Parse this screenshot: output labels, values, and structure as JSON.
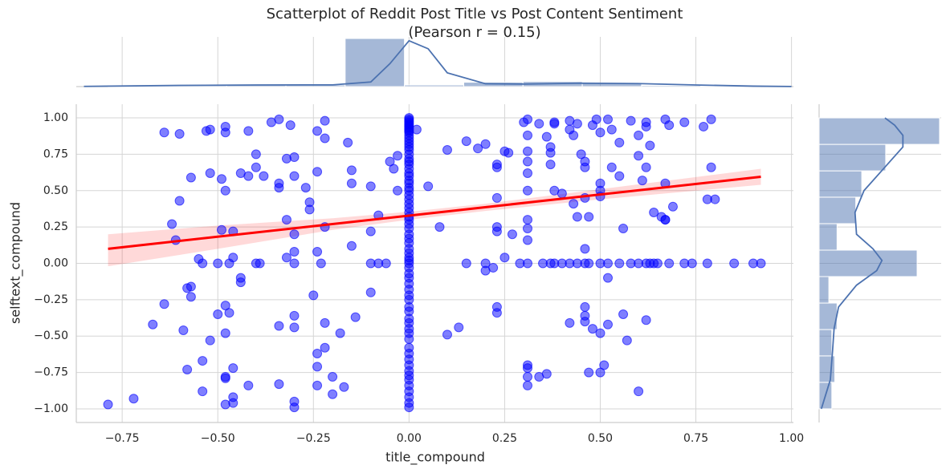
{
  "chart_data": {
    "type": "scatter",
    "title": "Scatterplot of Reddit Post Title vs Post Content Sentiment",
    "subtitle": "(Pearson r = 0.15)",
    "x_label": "title_compound",
    "y_label": "selftext_compound",
    "color": "blue",
    "grid": true,
    "xlim": [
      -0.87,
      1.005
    ],
    "ylim": [
      -1.094,
      1.094
    ],
    "xticks": [
      {
        "value": -0.75,
        "label": "−0.75"
      },
      {
        "value": -0.5,
        "label": "−0.50"
      },
      {
        "value": -0.25,
        "label": "−0.25"
      },
      {
        "value": 0,
        "label": "0.00"
      },
      {
        "value": 0.25,
        "label": "0.25"
      },
      {
        "value": 0.5,
        "label": "0.50"
      },
      {
        "value": 0.75,
        "label": "0.75"
      },
      {
        "value": 1.0,
        "label": "1.00"
      }
    ],
    "yticks": [
      {
        "value": -1.0,
        "label": "−1.00"
      },
      {
        "value": -0.75,
        "label": "−0.75"
      },
      {
        "value": -0.5,
        "label": "−0.50"
      },
      {
        "value": -0.25,
        "label": "−0.25"
      },
      {
        "value": 0,
        "label": "0.00"
      },
      {
        "value": 0.25,
        "label": "0.25"
      },
      {
        "value": 0.5,
        "label": "0.50"
      },
      {
        "value": 0.75,
        "label": "0.75"
      },
      {
        "value": 1.0,
        "label": "1.00"
      }
    ],
    "x": [
      -0.787,
      -0.72,
      -0.67,
      -0.64,
      -0.62,
      -0.61,
      -0.6,
      -0.64,
      -0.6,
      -0.59,
      -0.58,
      -0.57,
      -0.57,
      -0.58,
      -0.57,
      -0.55,
      -0.54,
      -0.54,
      -0.53,
      -0.52,
      -0.52,
      -0.52,
      -0.5,
      -0.49,
      -0.49,
      -0.48,
      -0.48,
      -0.48,
      -0.48,
      -0.48,
      -0.47,
      -0.48,
      -0.48,
      -0.48,
      -0.46,
      -0.46,
      -0.46,
      -0.46,
      -0.46,
      -0.44,
      -0.44,
      -0.44,
      -0.42,
      -0.42,
      -0.42,
      -0.4,
      -0.4,
      -0.38,
      -0.36,
      -0.34,
      -0.34,
      -0.34,
      -0.34,
      -0.34,
      -0.31,
      -0.32,
      -0.32,
      -0.32,
      -0.3,
      -0.3,
      -0.3,
      -0.3,
      -0.3,
      -0.3,
      -0.3,
      -0.3,
      -0.27,
      -0.26,
      -0.26,
      -0.25,
      -0.24,
      -0.24,
      -0.24,
      -0.24,
      -0.24,
      -0.24,
      -0.22,
      -0.22,
      -0.22,
      -0.22,
      -0.22,
      -0.2,
      -0.2,
      -0.18,
      -0.17,
      -0.16,
      -0.15,
      -0.15,
      -0.15,
      -0.14,
      -0.1,
      -0.1,
      -0.1,
      -0.08,
      -0.05,
      -0.03,
      -0.03,
      -0.04,
      0.1,
      0.13,
      0.08,
      0,
      0,
      0,
      0,
      0,
      0,
      0,
      0,
      0,
      0,
      0,
      0,
      0,
      0,
      0,
      0,
      0,
      0,
      0,
      0,
      0,
      0,
      0,
      0,
      0,
      0,
      0,
      0,
      0,
      0,
      0,
      0,
      0,
      0,
      0,
      0,
      0,
      0,
      0,
      0,
      0,
      0,
      0,
      0,
      0,
      0,
      0,
      0,
      0,
      0,
      0,
      0,
      0,
      0,
      0,
      0,
      0,
      0,
      0,
      0,
      0,
      0,
      0,
      0,
      0,
      0,
      0,
      0,
      0,
      0,
      0,
      0.15,
      0.2,
      0.29,
      0.31,
      0.35,
      0.37,
      0.38,
      0.4,
      0.42,
      0.44,
      0.46,
      0.47,
      0.5,
      0.52,
      0.55,
      0.58,
      0.6,
      0.62,
      0.63,
      0.64,
      0.65,
      0.68,
      0.72,
      0.74,
      0.78,
      0.85,
      0.9,
      0.92,
      -0.54,
      -0.5,
      -0.47,
      -0.4,
      -0.39,
      -0.3,
      -0.23,
      -0.1,
      -0.08,
      -0.06,
      0.02,
      0.05,
      0.1,
      0.15,
      0.18,
      0.2,
      0.2,
      0.22,
      0.25,
      0.26,
      0.23,
      0.23,
      0.23,
      0.23,
      0.23,
      0.23,
      0.23,
      0.3,
      0.31,
      0.31,
      0.31,
      0.31,
      0.31,
      0.31,
      0.31,
      0.31,
      0.31,
      0.31,
      0.31,
      0.31,
      0.31,
      0.34,
      0.36,
      0.36,
      0.37,
      0.37,
      0.37,
      0.38,
      0.38,
      0.38,
      0.4,
      0.42,
      0.42,
      0.43,
      0.43,
      0.44,
      0.44,
      0.45,
      0.46,
      0.46,
      0.46,
      0.46,
      0.46,
      0.46,
      0.46,
      0.47,
      0.48,
      0.49,
      0.5,
      0.5,
      0.5,
      0.5,
      0.5,
      0.5,
      0.51,
      0.52,
      0.52,
      0.52,
      0.53,
      0.53,
      0.55,
      0.55,
      0.56,
      0.56,
      0.57,
      0.58,
      0.6,
      0.6,
      0.6,
      0.61,
      0.62,
      0.62,
      0.62,
      0.62,
      0.63,
      0.64,
      0.66,
      0.67,
      0.67,
      0.67,
      0.67,
      0.68,
      0.69,
      0.72,
      0.77,
      0.78,
      0.79,
      0.79,
      0.8,
      0.34,
      0.42,
      0.48,
      0.47,
      0.25,
      0.27
    ],
    "y": [
      -0.97,
      -0.93,
      -0.42,
      -0.28,
      0.27,
      0.16,
      0.43,
      0.9,
      0.89,
      -0.46,
      -0.17,
      -0.16,
      -0.23,
      -0.73,
      0.59,
      0.03,
      -0.67,
      -0.88,
      0.91,
      0.92,
      0.62,
      -0.53,
      -0.35,
      0.23,
      0.58,
      0.94,
      0.9,
      0.5,
      -0.29,
      -0.48,
      -0.34,
      -0.78,
      -0.79,
      -0.97,
      0.22,
      0.04,
      -0.72,
      -0.92,
      -0.96,
      -0.1,
      -0.13,
      0.62,
      0.91,
      0.6,
      -0.84,
      0.75,
      0.66,
      0.6,
      0.97,
      0.99,
      0.55,
      0.52,
      -0.43,
      -0.83,
      0.95,
      0.3,
      0.72,
      0.04,
      0.73,
      0.6,
      0.2,
      0.08,
      -0.36,
      -0.44,
      -0.95,
      -0.99,
      0.52,
      0.42,
      0.37,
      -0.22,
      0.91,
      0.63,
      0.08,
      -0.62,
      -0.71,
      -0.84,
      0.98,
      0.86,
      0.25,
      -0.58,
      -0.41,
      -0.78,
      -0.9,
      -0.48,
      -0.85,
      0.83,
      0.64,
      0.55,
      0.12,
      -0.37,
      0.53,
      0.22,
      -0.2,
      0.33,
      0.7,
      0.74,
      0.5,
      0.65,
      -0.49,
      -0.44,
      0.25,
      1.0,
      0.99,
      0.98,
      0.97,
      0.96,
      0.95,
      0.94,
      0.93,
      0.92,
      0.91,
      0.9,
      0.88,
      0.86,
      0.84,
      0.82,
      0.8,
      0.78,
      0.75,
      0.72,
      0.7,
      0.68,
      0.65,
      0.62,
      0.6,
      0.57,
      0.55,
      0.52,
      0.5,
      0.47,
      0.44,
      0.41,
      0.38,
      0.35,
      0.32,
      0.3,
      0.27,
      0.24,
      0.2,
      0.17,
      0.14,
      0.1,
      0.07,
      0.04,
      0.02,
      0,
      -0.03,
      -0.07,
      -0.1,
      -0.14,
      -0.18,
      -0.22,
      -0.25,
      -0.3,
      -0.33,
      -0.38,
      -0.41,
      -0.45,
      -0.48,
      -0.52,
      -0.58,
      -0.62,
      -0.66,
      -0.7,
      -0.74,
      -0.77,
      -0.8,
      -0.84,
      -0.88,
      -0.92,
      -0.96,
      -0.99,
      0,
      0,
      0,
      0,
      0,
      0,
      0,
      0,
      0,
      0,
      0,
      0,
      0,
      0,
      0,
      0,
      0,
      0,
      0,
      0,
      0,
      0,
      0,
      0,
      0,
      0,
      0,
      0,
      0,
      0,
      0,
      0,
      0,
      0,
      0,
      0,
      0,
      0,
      0.92,
      0.53,
      0.78,
      0.84,
      0.79,
      0.82,
      -0.05,
      -0.03,
      0.77,
      0.76,
      0.68,
      0.66,
      0.45,
      0.25,
      0.22,
      -0.3,
      -0.34,
      0.97,
      0.99,
      0.88,
      0.77,
      0.7,
      0.62,
      0.5,
      0.3,
      0.24,
      0.16,
      -0.7,
      -0.72,
      -0.78,
      -0.84,
      -0.78,
      -0.76,
      0.87,
      0.8,
      0.76,
      0.68,
      0.96,
      0.97,
      0.5,
      0.48,
      0.92,
      0.98,
      0.88,
      0.41,
      0.32,
      0.96,
      0.75,
      0.7,
      0.66,
      0.45,
      0.1,
      -0.3,
      -0.36,
      -0.4,
      0.32,
      0.95,
      0.99,
      0.9,
      0.55,
      0.5,
      0.46,
      -0.48,
      -0.75,
      -0.7,
      -0.42,
      -0.1,
      0.99,
      0.92,
      0.66,
      0.83,
      0.6,
      0.24,
      -0.35,
      -0.53,
      0.98,
      0.88,
      0.74,
      -0.88,
      0.57,
      0.97,
      0.94,
      0.66,
      -0.39,
      0.81,
      0.35,
      0.32,
      0.3,
      0.3,
      0.55,
      0.99,
      0.95,
      0.39,
      0.97,
      0.94,
      0.44,
      0.66,
      0.99,
      0.44,
      0.96,
      -0.41,
      -0.45,
      -0.75,
      0.04,
      0.2
    ],
    "regression": {
      "x": [
        -0.787,
        0.92
      ],
      "y": [
        0.1,
        0.595
      ],
      "color": "red",
      "ci_x": [
        -0.787,
        -0.5,
        -0.2,
        0,
        0.2,
        0.5,
        0.92
      ],
      "ci_lower": [
        -0.02,
        0.1,
        0.23,
        0.3,
        0.36,
        0.44,
        0.54
      ],
      "ci_upper": [
        0.2,
        0.26,
        0.31,
        0.355,
        0.41,
        0.51,
        0.65
      ]
    },
    "top_histogram": {
      "bins": [
        -0.787,
        -0.632,
        -0.477,
        -0.322,
        -0.167,
        -0.012,
        0.143,
        0.298,
        0.453,
        0.608,
        0.763,
        0.918
      ],
      "counts": [
        6,
        10,
        14,
        14,
        420,
        14,
        38,
        44,
        30,
        10,
        4
      ],
      "color": "#4c72b0"
    },
    "top_kde": {
      "x": [
        -0.85,
        -0.6,
        -0.4,
        -0.2,
        -0.1,
        -0.05,
        0,
        0.05,
        0.1,
        0.2,
        0.3,
        0.45,
        0.6,
        0.75,
        0.9,
        1.0
      ],
      "values": [
        2,
        10,
        14,
        15,
        40,
        200,
        400,
        330,
        120,
        25,
        22,
        30,
        26,
        14,
        4,
        1
      ]
    },
    "right_histogram": {
      "bins": [
        -1,
        -0.818,
        -0.636,
        -0.455,
        -0.273,
        -0.091,
        0.091,
        0.273,
        0.455,
        0.636,
        0.818,
        1.0
      ],
      "counts": [
        17,
        21,
        17,
        24,
        13,
        131,
        24,
        49,
        57,
        89,
        161
      ],
      "color": "#4c72b0"
    },
    "right_kde": {
      "y": [
        -1,
        -0.8,
        -0.6,
        -0.45,
        -0.3,
        -0.15,
        -0.05,
        0.02,
        0.1,
        0.2,
        0.35,
        0.5,
        0.65,
        0.8,
        0.88,
        0.95,
        1.0
      ],
      "values": [
        3,
        15,
        18,
        20,
        26,
        50,
        77,
        84,
        72,
        50,
        48,
        60,
        86,
        112,
        112,
        101,
        88
      ]
    }
  }
}
